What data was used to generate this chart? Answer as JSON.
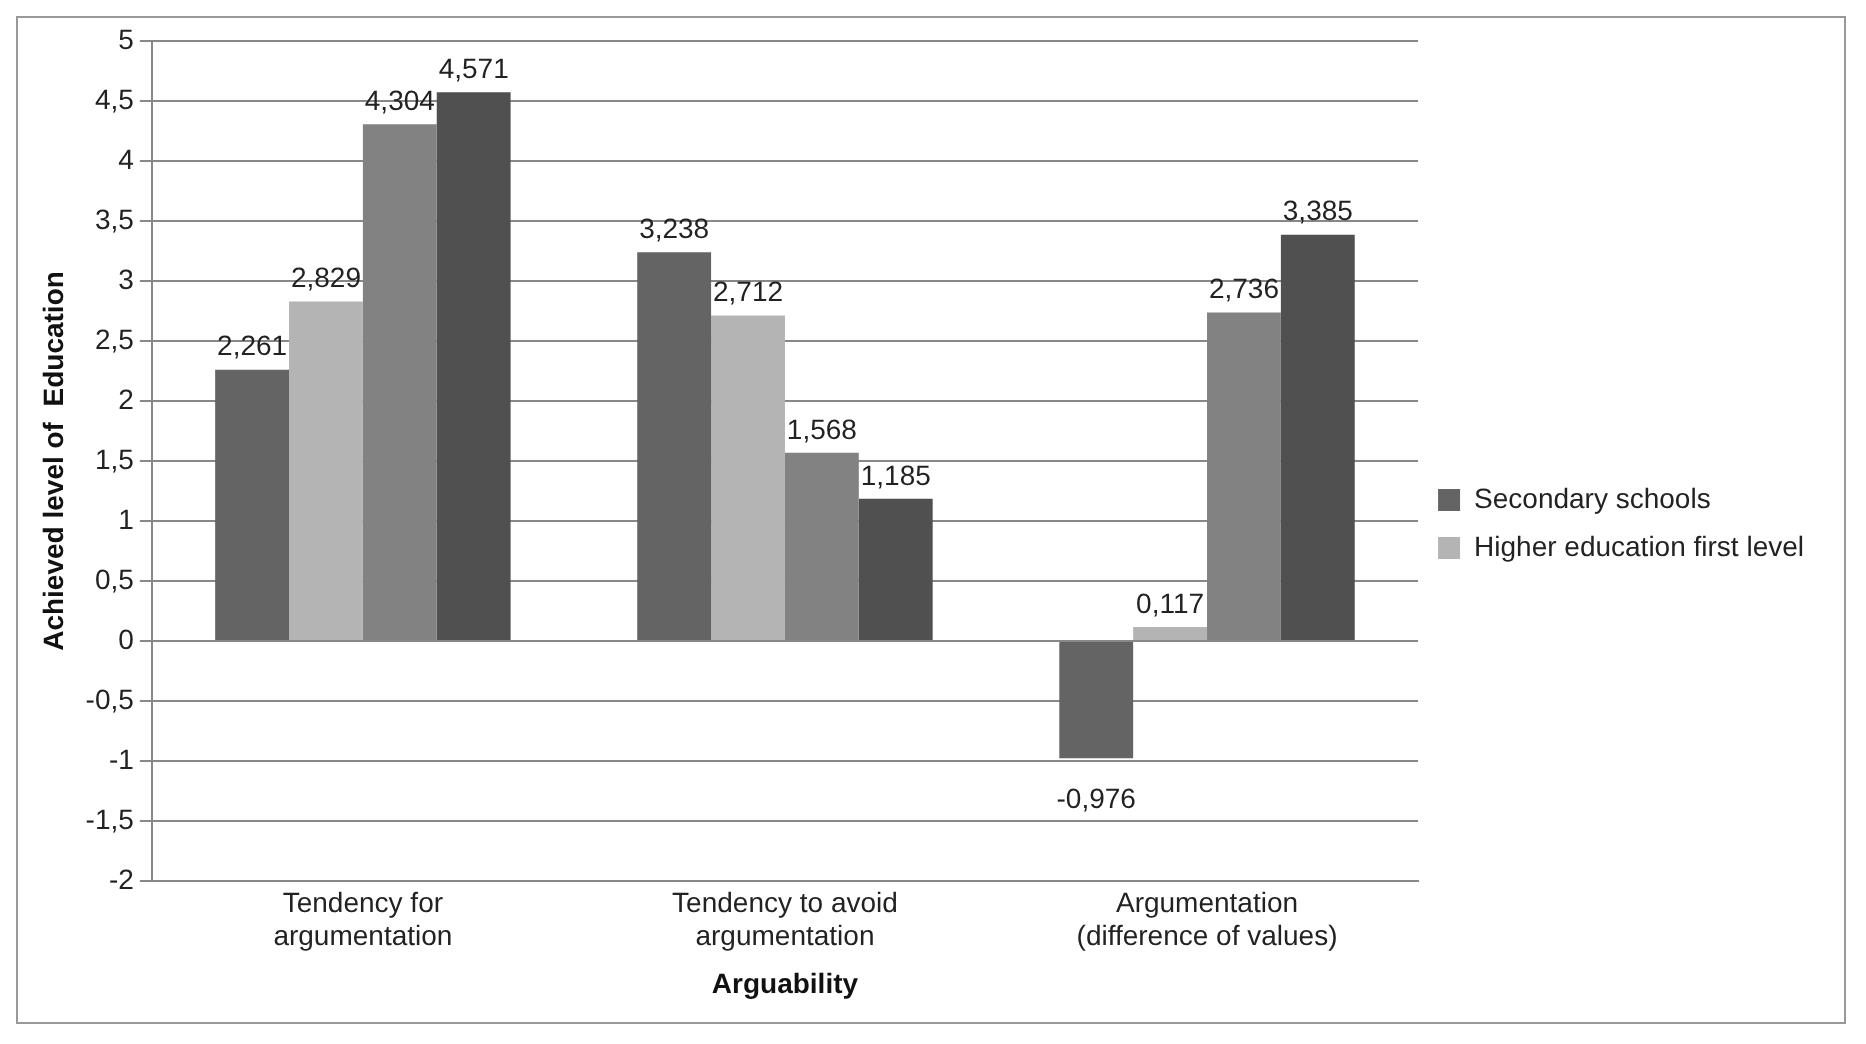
{
  "chart_data": {
    "type": "bar",
    "xlabel": "Arguability",
    "ylabel": "Achieved level of  Education",
    "categories": [
      "Tendency for argumentation",
      "Tendency to avoid argumentation",
      "Argumentation (difference of values)"
    ],
    "series": [
      {
        "name": "Secondary schools",
        "color": "#646464",
        "values": [
          2.261,
          3.238,
          -0.976
        ],
        "value_labels": [
          "2,261",
          "3,238",
          "-0,976"
        ]
      },
      {
        "name": "Higher education first level",
        "color": "#b4b4b4",
        "values": [
          2.829,
          2.712,
          0.117
        ],
        "value_labels": [
          "2,829",
          "2,712",
          "0,117"
        ]
      },
      {
        "color": "#828282",
        "values": [
          4.304,
          1.568,
          2.736
        ],
        "value_labels": [
          "4,304",
          "1,568",
          "2,736"
        ]
      },
      {
        "color": "#505050",
        "values": [
          4.571,
          1.185,
          3.385
        ],
        "value_labels": [
          "4,571",
          "1,185",
          "3,385"
        ]
      }
    ],
    "ylim": [
      -2,
      5
    ],
    "yticks": [
      {
        "value": -2,
        "label": "-2"
      },
      {
        "value": -1.5,
        "label": "-1,5"
      },
      {
        "value": -1,
        "label": "-1"
      },
      {
        "value": -0.5,
        "label": "-0,5"
      },
      {
        "value": 0,
        "label": "0"
      },
      {
        "value": 0.5,
        "label": "0,5"
      },
      {
        "value": 1,
        "label": "1"
      },
      {
        "value": 1.5,
        "label": "1,5"
      },
      {
        "value": 2,
        "label": "2"
      },
      {
        "value": 2.5,
        "label": "2,5"
      },
      {
        "value": 3,
        "label": "3"
      },
      {
        "value": 3.5,
        "label": "3,5"
      },
      {
        "value": 4,
        "label": "4"
      },
      {
        "value": 4.5,
        "label": "4,5"
      },
      {
        "value": 5,
        "label": "5"
      }
    ],
    "grid": "y",
    "legend": "right"
  }
}
